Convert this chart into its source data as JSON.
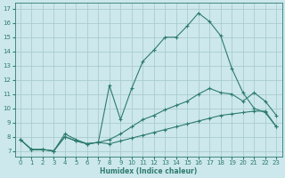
{
  "xlabel": "Humidex (Indice chaleur)",
  "bg_color": "#cce8ec",
  "grid_color": "#aacccc",
  "line_color": "#2e7b6e",
  "xlim": [
    -0.5,
    23.5
  ],
  "ylim": [
    6.6,
    17.4
  ],
  "xticks": [
    0,
    1,
    2,
    3,
    4,
    5,
    6,
    7,
    8,
    9,
    10,
    11,
    12,
    13,
    14,
    15,
    16,
    17,
    18,
    19,
    20,
    21,
    22,
    23
  ],
  "yticks": [
    7,
    8,
    9,
    10,
    11,
    12,
    13,
    14,
    15,
    16,
    17
  ],
  "line_main_x": [
    0,
    1,
    2,
    3,
    4,
    5,
    6,
    7,
    8,
    9,
    10,
    11,
    12,
    13,
    14,
    15,
    16,
    17,
    18,
    19,
    20,
    21,
    22,
    23
  ],
  "line_main_y": [
    7.8,
    7.1,
    7.1,
    7.0,
    8.2,
    7.8,
    7.5,
    7.6,
    11.6,
    9.2,
    11.4,
    13.3,
    14.1,
    15.0,
    15.0,
    15.8,
    16.7,
    16.1,
    15.1,
    12.8,
    11.1,
    10.0,
    9.7,
    8.7
  ],
  "line_mid_x": [
    0,
    1,
    2,
    3,
    4,
    5,
    6,
    7,
    8,
    9,
    10,
    11,
    12,
    13,
    14,
    15,
    16,
    17,
    18,
    19,
    20,
    21,
    22,
    23
  ],
  "line_mid_y": [
    7.8,
    7.1,
    7.1,
    7.0,
    8.0,
    7.7,
    7.5,
    7.6,
    7.8,
    8.2,
    8.7,
    9.2,
    9.5,
    9.9,
    10.2,
    10.5,
    11.0,
    11.4,
    11.1,
    11.0,
    10.5,
    11.1,
    10.5,
    9.5
  ],
  "line_bot_x": [
    0,
    1,
    2,
    3,
    4,
    5,
    6,
    7,
    8,
    9,
    10,
    11,
    12,
    13,
    14,
    15,
    16,
    17,
    18,
    19,
    20,
    21,
    22,
    23
  ],
  "line_bot_y": [
    7.8,
    7.1,
    7.1,
    7.0,
    8.0,
    7.7,
    7.5,
    7.6,
    7.5,
    7.7,
    7.9,
    8.1,
    8.3,
    8.5,
    8.7,
    8.9,
    9.1,
    9.3,
    9.5,
    9.6,
    9.7,
    9.8,
    9.8,
    8.7
  ],
  "marker": "+"
}
